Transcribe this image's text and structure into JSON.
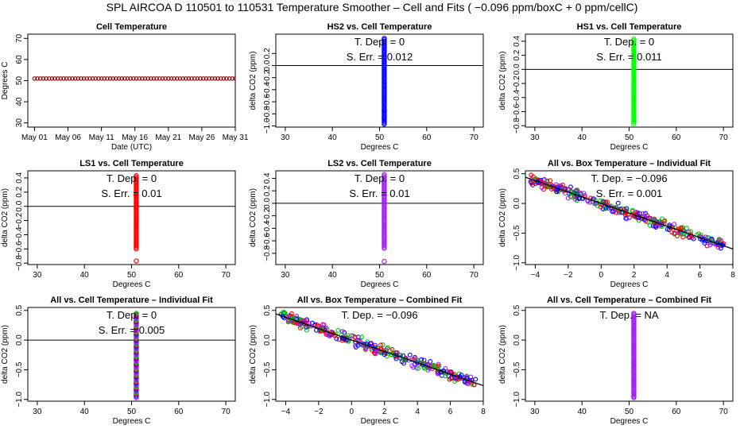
{
  "suptitle": "SPL    AIRCOA D    110501 to 110531    Temperature Smoother – Cell and Fits ( −0.096  ppm/boxC +  0  ppm/cellC)",
  "colors": {
    "hs2": "#0000ff",
    "hs1": "#00ff00",
    "ls1": "#ff0000",
    "ls2": "#a020f0",
    "all_mix": [
      "#ff0000",
      "#00c000",
      "#0000ff",
      "#a020f0"
    ],
    "cell_temp": "#8b0000"
  },
  "chart_data": [
    {
      "id": "cell-temperature",
      "type": "scatter",
      "title": "Cell Temperature",
      "xlabel": "Date (UTC)",
      "ylabel": "Degrees C",
      "xlim": [
        0,
        31
      ],
      "ylim": [
        28,
        72
      ],
      "xticks": [
        {
          "v": 1,
          "label": "May 01"
        },
        {
          "v": 6,
          "label": "May 06"
        },
        {
          "v": 11,
          "label": "May 11"
        },
        {
          "v": 16,
          "label": "May 16"
        },
        {
          "v": 21,
          "label": "May 21"
        },
        {
          "v": 26,
          "label": "May 26"
        },
        {
          "v": 31,
          "label": "May 31"
        }
      ],
      "yticks": [
        {
          "v": 30,
          "label": "30"
        },
        {
          "v": 40,
          "label": "40"
        },
        {
          "v": 50,
          "label": "50"
        },
        {
          "v": 60,
          "label": "60"
        },
        {
          "v": 70,
          "label": "70"
        }
      ],
      "rotate_yticks": true,
      "series": [
        {
          "color": "#8b0000",
          "x_range": [
            1,
            31
          ],
          "y_const": 51,
          "n": 70
        }
      ]
    },
    {
      "id": "hs2-vs-cell",
      "type": "scatter",
      "title": "HS2 vs. Cell Temperature",
      "xlabel": "Degrees C",
      "ylabel": "delta CO2 (ppm)",
      "xlim": [
        28,
        72
      ],
      "ylim": [
        -1.02,
        0.52
      ],
      "xticks": [
        {
          "v": 30,
          "label": "30"
        },
        {
          "v": 40,
          "label": "40"
        },
        {
          "v": 50,
          "label": "50"
        },
        {
          "v": 60,
          "label": "60"
        },
        {
          "v": 70,
          "label": "70"
        }
      ],
      "yticks": [
        {
          "v": -1.0,
          "label": "−1.0"
        },
        {
          "v": -0.8,
          "label": "−0.8"
        },
        {
          "v": -0.6,
          "label": "−0.6"
        },
        {
          "v": -0.4,
          "label": "−0.4"
        },
        {
          "v": -0.2,
          "label": "−0.2"
        },
        {
          "v": 0.0,
          "label": "0.0"
        },
        {
          "v": 0.2,
          "label": "0.2"
        }
      ],
      "rotate_yticks": true,
      "hline": 0,
      "annotations": [
        "T. Dep. =  0",
        "S. Err. =  0.012"
      ],
      "series": [
        {
          "color": "#0000ff",
          "x": 51,
          "y_range": [
            -0.97,
            0.45
          ],
          "n": 60,
          "outliers": [
            -0.87,
            -0.75
          ]
        }
      ]
    },
    {
      "id": "hs1-vs-cell",
      "type": "scatter",
      "title": "HS1 vs. Cell Temperature",
      "xlabel": "Degrees C",
      "ylabel": "delta CO2 (ppm)",
      "xlim": [
        28,
        72
      ],
      "ylim": [
        -0.82,
        0.5
      ],
      "xticks": [
        {
          "v": 30,
          "label": "30"
        },
        {
          "v": 40,
          "label": "40"
        },
        {
          "v": 50,
          "label": "50"
        },
        {
          "v": 60,
          "label": "60"
        },
        {
          "v": 70,
          "label": "70"
        }
      ],
      "yticks": [
        {
          "v": -0.8,
          "label": "−0.8"
        },
        {
          "v": -0.6,
          "label": "−0.6"
        },
        {
          "v": -0.4,
          "label": "−0.4"
        },
        {
          "v": -0.2,
          "label": "−0.2"
        },
        {
          "v": 0.0,
          "label": "0.0"
        },
        {
          "v": 0.2,
          "label": "0.2"
        },
        {
          "v": 0.4,
          "label": "0.4"
        }
      ],
      "rotate_yticks": true,
      "hline": 0,
      "annotations": [
        "T. Dep. =  0",
        "S. Err. =  0.011"
      ],
      "series": [
        {
          "color": "#00ff00",
          "x": 51,
          "y_range": [
            -0.77,
            0.43
          ],
          "n": 55,
          "outliers": [
            -0.72,
            -0.66
          ]
        }
      ]
    },
    {
      "id": "ls1-vs-cell",
      "type": "scatter",
      "title": "LS1 vs. Cell Temperature",
      "xlabel": "Degrees C",
      "ylabel": "delta CO2 (ppm)",
      "xlim": [
        28,
        72
      ],
      "ylim": [
        -0.82,
        0.5
      ],
      "xticks": [
        {
          "v": 30,
          "label": "30"
        },
        {
          "v": 40,
          "label": "40"
        },
        {
          "v": 50,
          "label": "50"
        },
        {
          "v": 60,
          "label": "60"
        },
        {
          "v": 70,
          "label": "70"
        }
      ],
      "yticks": [
        {
          "v": -0.8,
          "label": "−0.8"
        },
        {
          "v": -0.6,
          "label": "−0.6"
        },
        {
          "v": -0.4,
          "label": "−0.4"
        },
        {
          "v": -0.2,
          "label": "−0.2"
        },
        {
          "v": 0.0,
          "label": "0.0"
        },
        {
          "v": 0.2,
          "label": "0.2"
        },
        {
          "v": 0.4,
          "label": "0.4"
        }
      ],
      "rotate_yticks": true,
      "hline": 0,
      "annotations": [
        "T. Dep. =  0",
        "S. Err. =  0.01"
      ],
      "series": [
        {
          "color": "#ff0000",
          "x": 51,
          "y_range": [
            -0.6,
            0.43
          ],
          "n": 50,
          "outliers": [
            -0.77
          ]
        }
      ]
    },
    {
      "id": "ls2-vs-cell",
      "type": "scatter",
      "title": "LS2 vs. Cell Temperature",
      "xlabel": "Degrees C",
      "ylabel": "delta CO2 (ppm)",
      "xlim": [
        28,
        72
      ],
      "ylim": [
        -0.98,
        0.52
      ],
      "xticks": [
        {
          "v": 30,
          "label": "30"
        },
        {
          "v": 40,
          "label": "40"
        },
        {
          "v": 50,
          "label": "50"
        },
        {
          "v": 60,
          "label": "60"
        },
        {
          "v": 70,
          "label": "70"
        }
      ],
      "yticks": [
        {
          "v": -0.8,
          "label": "−0.8"
        },
        {
          "v": -0.6,
          "label": "−0.6"
        },
        {
          "v": -0.4,
          "label": "−0.4"
        },
        {
          "v": -0.2,
          "label": "−0.2"
        },
        {
          "v": 0.0,
          "label": "0.0"
        },
        {
          "v": 0.2,
          "label": "0.2"
        },
        {
          "v": 0.4,
          "label": "0.4"
        }
      ],
      "rotate_yticks": true,
      "hline": 0,
      "annotations": [
        "T. Dep. =  0",
        "S. Err. =  0.01"
      ],
      "series": [
        {
          "color": "#a020f0",
          "x": 51,
          "y_range": [
            -0.72,
            0.46
          ],
          "n": 52,
          "outliers": [
            -0.93
          ]
        }
      ]
    },
    {
      "id": "all-vs-box-individual",
      "type": "scatter",
      "title": "All vs. Box Temperature – Individual Fit",
      "xlabel": "Degrees C",
      "ylabel": "delta CO2 (ppm)",
      "xlim": [
        -4.6,
        8
      ],
      "ylim": [
        -1.03,
        0.55
      ],
      "xticks": [
        {
          "v": -4,
          "label": "−4"
        },
        {
          "v": -2,
          "label": "−2"
        },
        {
          "v": 0,
          "label": "0"
        },
        {
          "v": 2,
          "label": "2"
        },
        {
          "v": 4,
          "label": "4"
        },
        {
          "v": 6,
          "label": "6"
        },
        {
          "v": 8,
          "label": "8"
        }
      ],
      "yticks": [
        {
          "v": -1.0,
          "label": "−1.0"
        },
        {
          "v": -0.5,
          "label": "−0.5"
        },
        {
          "v": 0.0,
          "label": "0.0"
        },
        {
          "v": 0.5,
          "label": "0.5"
        }
      ],
      "rotate_yticks": true,
      "fit": {
        "slope": -0.096,
        "intercept": 0.0
      },
      "annotations": [
        "T. Dep. =  −0.096",
        "S. Err. =  0.001"
      ],
      "series": [
        {
          "colors": [
            "#ff0000",
            "#00c000",
            "#0000ff",
            "#a020f0"
          ],
          "x_range": [
            -4.3,
            7.6
          ],
          "slope": -0.096,
          "intercept": 0.0,
          "spread": 0.13,
          "n": 340
        }
      ]
    },
    {
      "id": "all-vs-cell-individual",
      "type": "scatter",
      "title": "All vs. Cell Temperature – Individual Fit",
      "xlabel": "Degrees C",
      "ylabel": "delta CO2 (ppm)",
      "xlim": [
        28,
        72
      ],
      "ylim": [
        -1.03,
        0.55
      ],
      "xticks": [
        {
          "v": 30,
          "label": "30"
        },
        {
          "v": 40,
          "label": "40"
        },
        {
          "v": 50,
          "label": "50"
        },
        {
          "v": 60,
          "label": "60"
        },
        {
          "v": 70,
          "label": "70"
        }
      ],
      "yticks": [
        {
          "v": -1.0,
          "label": "−1.0"
        },
        {
          "v": -0.5,
          "label": "−0.5"
        },
        {
          "v": 0.0,
          "label": "0.0"
        },
        {
          "v": 0.5,
          "label": "0.5"
        }
      ],
      "rotate_yticks": true,
      "hline": 0,
      "annotations": [
        "T. Dep. =  0",
        "S. Err. =  0.005"
      ],
      "series": [
        {
          "colors": [
            "#a020f0",
            "#a020f0",
            "#0000ff",
            "#ff0000",
            "#00c000"
          ],
          "x": 51,
          "y_range": [
            -0.97,
            0.45
          ],
          "n": 70
        }
      ]
    },
    {
      "id": "all-vs-box-combined",
      "type": "scatter",
      "title": "All vs. Box Temperature – Combined Fit",
      "xlabel": "Degrees C",
      "ylabel": "delta CO2 (ppm)",
      "xlim": [
        -4.6,
        8
      ],
      "ylim": [
        -1.03,
        0.55
      ],
      "xticks": [
        {
          "v": -4,
          "label": "−4"
        },
        {
          "v": -2,
          "label": "−2"
        },
        {
          "v": 0,
          "label": "0"
        },
        {
          "v": 2,
          "label": "2"
        },
        {
          "v": 4,
          "label": "4"
        },
        {
          "v": 6,
          "label": "6"
        },
        {
          "v": 8,
          "label": "8"
        }
      ],
      "yticks": [
        {
          "v": -1.0,
          "label": "−1.0"
        },
        {
          "v": -0.5,
          "label": "−0.5"
        },
        {
          "v": 0.0,
          "label": "0.0"
        },
        {
          "v": 0.5,
          "label": "0.5"
        }
      ],
      "rotate_yticks": true,
      "fit": {
        "slope": -0.096,
        "intercept": 0.0
      },
      "annotations": [
        "T. Dep. =  −0.096"
      ],
      "series": [
        {
          "colors": [
            "#ff0000",
            "#00c000",
            "#0000ff",
            "#a020f0"
          ],
          "x_range": [
            -4.3,
            7.6
          ],
          "slope": -0.096,
          "intercept": 0.0,
          "spread": 0.13,
          "n": 340
        }
      ]
    },
    {
      "id": "all-vs-cell-combined",
      "type": "scatter",
      "title": "All vs. Cell Temperature – Combined Fit",
      "xlabel": "Degrees C",
      "ylabel": "delta CO2 (ppm)",
      "xlim": [
        28,
        72
      ],
      "ylim": [
        -1.03,
        0.55
      ],
      "xticks": [
        {
          "v": 30,
          "label": "30"
        },
        {
          "v": 40,
          "label": "40"
        },
        {
          "v": 50,
          "label": "50"
        },
        {
          "v": 60,
          "label": "60"
        },
        {
          "v": 70,
          "label": "70"
        }
      ],
      "yticks": [
        {
          "v": -1.0,
          "label": "−1.0"
        },
        {
          "v": -0.5,
          "label": "−0.5"
        },
        {
          "v": 0.0,
          "label": "0.0"
        },
        {
          "v": 0.5,
          "label": "0.5"
        }
      ],
      "rotate_yticks": true,
      "annotations": [
        "T. Dep. =  NA"
      ],
      "series": [
        {
          "colors": [
            "#a020f0"
          ],
          "x": 51,
          "y_range": [
            -0.97,
            0.45
          ],
          "n": 70
        }
      ]
    }
  ]
}
